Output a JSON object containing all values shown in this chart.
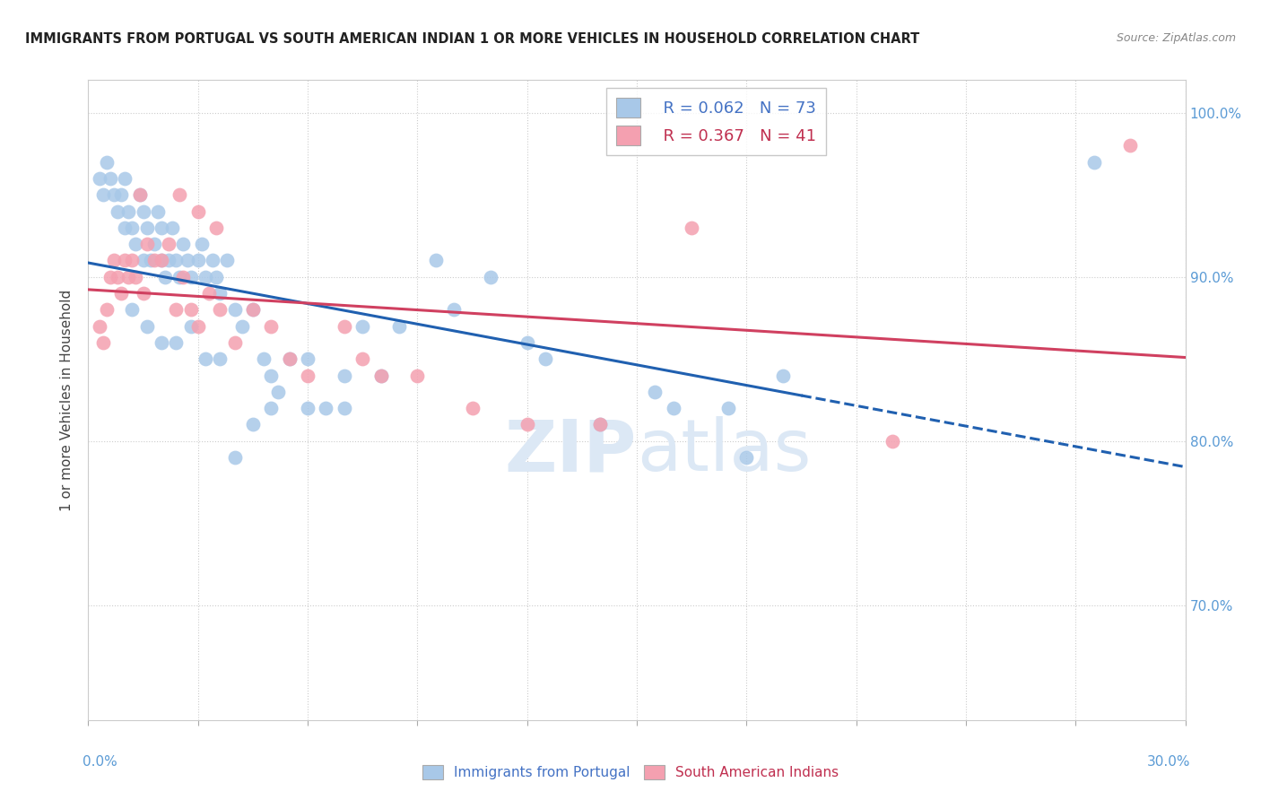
{
  "title": "IMMIGRANTS FROM PORTUGAL VS SOUTH AMERICAN INDIAN 1 OR MORE VEHICLES IN HOUSEHOLD CORRELATION CHART",
  "source": "Source: ZipAtlas.com",
  "ylabel_label": "1 or more Vehicles in Household",
  "legend_blue_r": "R = 0.062",
  "legend_blue_n": "N = 73",
  "legend_pink_r": "R = 0.367",
  "legend_pink_n": "N = 41",
  "legend_blue_label": "Immigrants from Portugal",
  "legend_pink_label": "South American Indians",
  "blue_color": "#a8c8e8",
  "pink_color": "#f4a0b0",
  "trend_blue_color": "#2060b0",
  "trend_pink_color": "#d04060",
  "watermark_zip": "ZIP",
  "watermark_atlas": "atlas",
  "watermark_color": "#dce8f5",
  "xmin": 0.0,
  "xmax": 30.0,
  "ymin": 63.0,
  "ymax": 102.0,
  "right_ytick_labels": [
    "100.0%",
    "90.0%",
    "80.0%",
    "70.0%"
  ],
  "right_ytick_vals": [
    100,
    90,
    80,
    70
  ],
  "blue_x": [
    0.3,
    0.4,
    0.5,
    0.6,
    0.7,
    0.8,
    0.9,
    1.0,
    1.0,
    1.1,
    1.2,
    1.3,
    1.4,
    1.5,
    1.5,
    1.6,
    1.7,
    1.8,
    1.9,
    2.0,
    2.0,
    2.1,
    2.2,
    2.3,
    2.4,
    2.5,
    2.6,
    2.7,
    2.8,
    3.0,
    3.1,
    3.2,
    3.4,
    3.5,
    3.6,
    3.8,
    4.0,
    4.2,
    4.5,
    4.8,
    5.0,
    5.2,
    5.5,
    6.0,
    6.5,
    7.0,
    7.5,
    8.5,
    9.5,
    11.0,
    12.5,
    14.0,
    15.5,
    16.0,
    17.5,
    18.0,
    19.0,
    1.2,
    1.6,
    2.0,
    2.4,
    2.8,
    3.2,
    3.6,
    4.0,
    4.5,
    5.0,
    6.0,
    7.0,
    8.0,
    10.0,
    12.0,
    27.5
  ],
  "blue_y": [
    96,
    95,
    97,
    96,
    95,
    94,
    95,
    96,
    93,
    94,
    93,
    92,
    95,
    94,
    91,
    93,
    91,
    92,
    94,
    93,
    91,
    90,
    91,
    93,
    91,
    90,
    92,
    91,
    90,
    91,
    92,
    90,
    91,
    90,
    89,
    91,
    88,
    87,
    88,
    85,
    84,
    83,
    85,
    85,
    82,
    84,
    87,
    87,
    91,
    90,
    85,
    81,
    83,
    82,
    82,
    79,
    84,
    88,
    87,
    86,
    86,
    87,
    85,
    85,
    79,
    81,
    82,
    82,
    82,
    84,
    88,
    86,
    97
  ],
  "pink_x": [
    0.3,
    0.4,
    0.5,
    0.6,
    0.7,
    0.8,
    0.9,
    1.0,
    1.1,
    1.2,
    1.3,
    1.5,
    1.6,
    1.8,
    2.0,
    2.2,
    2.4,
    2.6,
    2.8,
    3.0,
    3.3,
    3.6,
    4.0,
    4.5,
    5.0,
    5.5,
    6.0,
    7.0,
    7.5,
    8.0,
    9.0,
    10.5,
    12.0,
    14.0,
    16.5,
    22.0,
    1.4,
    2.5,
    3.0,
    3.5,
    28.5
  ],
  "pink_y": [
    87,
    86,
    88,
    90,
    91,
    90,
    89,
    91,
    90,
    91,
    90,
    89,
    92,
    91,
    91,
    92,
    88,
    90,
    88,
    87,
    89,
    88,
    86,
    88,
    87,
    85,
    84,
    87,
    85,
    84,
    84,
    82,
    81,
    81,
    93,
    80,
    95,
    95,
    94,
    93,
    98
  ],
  "blue_trend_x0": 0.0,
  "blue_trend_x1": 30.0,
  "blue_solid_end": 19.5,
  "pink_trend_x0": 0.0,
  "pink_trend_x1": 30.0
}
